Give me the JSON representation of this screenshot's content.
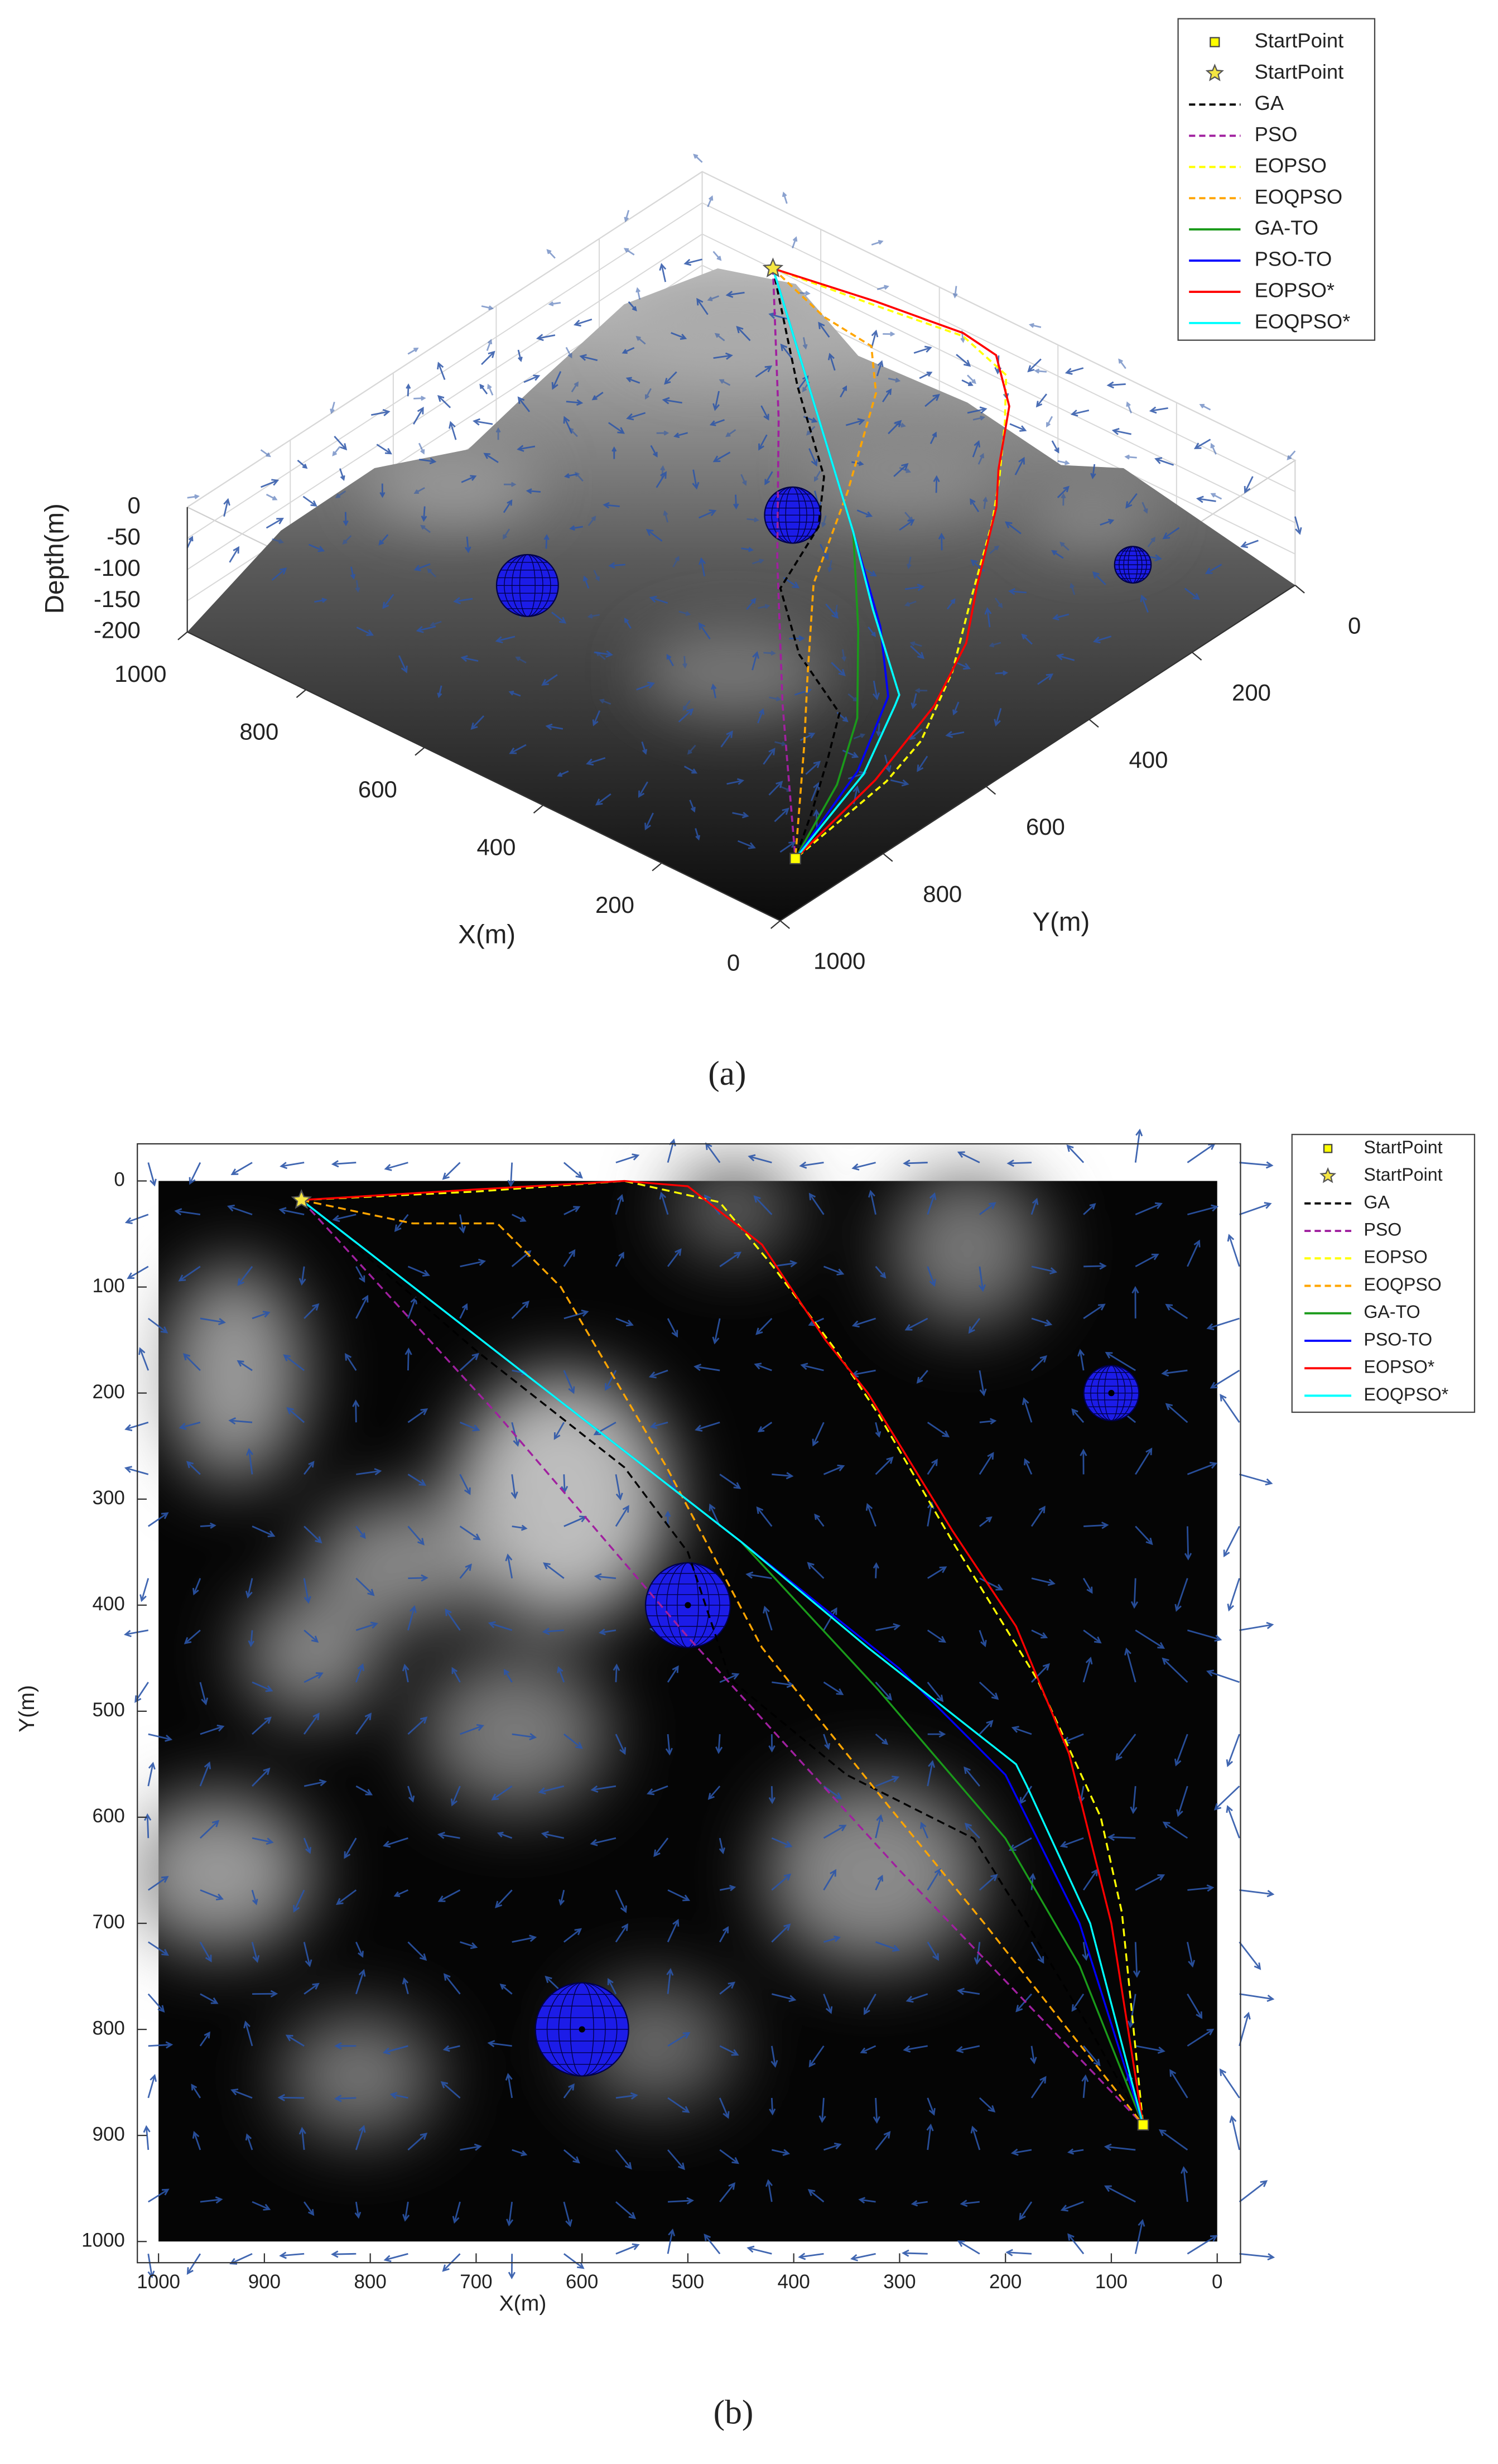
{
  "chart_data": [
    {
      "type": "line3d",
      "caption": "(a)",
      "xlabel": "X(m)",
      "ylabel": "Y(m)",
      "zlabel": "Depth(m)",
      "xlim": [
        0,
        1000
      ],
      "ylim": [
        0,
        1000
      ],
      "zlim": [
        -200,
        0
      ],
      "xticks": [
        0,
        200,
        400,
        600,
        800,
        1000
      ],
      "yticks": [
        0,
        200,
        400,
        600,
        800,
        1000
      ],
      "zticks": [
        0,
        -50,
        -100,
        -150,
        -200
      ],
      "legend": "upper right",
      "markers": [
        {
          "name": "StartPoint",
          "marker": "square",
          "color": "#ffff00",
          "x": 70,
          "y": 890,
          "z": -192
        },
        {
          "name": "StartPoint",
          "marker": "star",
          "color": "#f5e642",
          "x": 865,
          "y": 18,
          "z": -83
        }
      ],
      "series": [
        {
          "name": "GA",
          "color": "#000000",
          "linestyle": "dashed",
          "x": [
            865,
            700,
            560,
            500,
            460,
            350,
            230,
            180,
            120,
            70
          ],
          "y": [
            18,
            160,
            270,
            350,
            470,
            560,
            620,
            700,
            800,
            890
          ],
          "z": [
            -83,
            -120,
            -140,
            -150,
            -165,
            -172,
            -178,
            -184,
            -188,
            -192
          ]
        },
        {
          "name": "PSO",
          "color": "#a0209f",
          "linestyle": "dashed",
          "x": [
            865,
            680,
            500,
            300,
            70
          ],
          "y": [
            18,
            220,
            430,
            650,
            890
          ],
          "z": [
            -83,
            -130,
            -160,
            -180,
            -192
          ]
        },
        {
          "name": "EOPSO",
          "color": "#ffff00",
          "linestyle": "dashed",
          "x": [
            865,
            700,
            560,
            470,
            420,
            360,
            320,
            250,
            170,
            110,
            90,
            70
          ],
          "y": [
            18,
            10,
            0,
            20,
            80,
            160,
            220,
            340,
            470,
            600,
            690,
            890
          ],
          "z": [
            -83,
            -70,
            -60,
            -70,
            -90,
            -110,
            -130,
            -150,
            -165,
            -178,
            -185,
            -192
          ]
        },
        {
          "name": "EOQPSO",
          "color": "#ffa500",
          "linestyle": "dashed",
          "x": [
            865,
            760,
            680,
            620,
            520,
            430,
            310,
            220,
            70
          ],
          "y": [
            18,
            40,
            40,
            100,
            270,
            440,
            590,
            700,
            890
          ],
          "z": [
            -83,
            -100,
            -110,
            -125,
            -145,
            -160,
            -172,
            -182,
            -192
          ]
        },
        {
          "name": "GA-TO",
          "color": "#1a9a1a",
          "linestyle": "solid",
          "x": [
            865,
            450,
            320,
            200,
            130,
            70
          ],
          "y": [
            18,
            340,
            480,
            620,
            740,
            890
          ],
          "z": [
            -83,
            -140,
            -160,
            -172,
            -182,
            -192
          ]
        },
        {
          "name": "PSO-TO",
          "color": "#0000ff",
          "linestyle": "solid",
          "x": [
            865,
            450,
            300,
            200,
            130,
            70
          ],
          "y": [
            18,
            340,
            460,
            560,
            700,
            890
          ],
          "z": [
            -83,
            -140,
            -158,
            -170,
            -182,
            -192
          ]
        },
        {
          "name": "EOPSO*",
          "color": "#ff0000",
          "linestyle": "solid",
          "x": [
            865,
            700,
            560,
            500,
            430,
            370,
            330,
            250,
            190,
            140,
            100,
            70
          ],
          "y": [
            18,
            8,
            0,
            5,
            60,
            150,
            200,
            330,
            420,
            540,
            700,
            890
          ],
          "z": [
            -83,
            -65,
            -55,
            -60,
            -80,
            -105,
            -120,
            -140,
            -155,
            -168,
            -182,
            -192
          ]
        },
        {
          "name": "EOQPSO*",
          "color": "#00ffff",
          "linestyle": "solid",
          "x": [
            865,
            450,
            330,
            190,
            180,
            120,
            70
          ],
          "y": [
            18,
            340,
            440,
            550,
            570,
            700,
            890
          ],
          "z": [
            -83,
            -140,
            -155,
            -168,
            -170,
            -182,
            -192
          ]
        }
      ],
      "obstacles": [
        {
          "x": 600,
          "y": 800,
          "z": -48,
          "r": 44
        },
        {
          "x": 500,
          "y": 400,
          "z": -104,
          "r": 40
        },
        {
          "x": 100,
          "y": 200,
          "z": -106,
          "r": 26
        }
      ]
    },
    {
      "type": "line",
      "caption": "(b)",
      "xlabel": "X(m)",
      "ylabel": "Y(m)",
      "xlim": [
        1020,
        -22
      ],
      "ylim": [
        -35,
        1020
      ],
      "xticks": [
        1000,
        900,
        800,
        700,
        600,
        500,
        400,
        300,
        200,
        100,
        0
      ],
      "yticks": [
        0,
        100,
        200,
        300,
        400,
        500,
        600,
        700,
        800,
        900,
        1000
      ],
      "legend": "outside upper right",
      "markers": [
        {
          "name": "StartPoint",
          "marker": "square",
          "color": "#ffff00",
          "x": 70,
          "y": 890
        },
        {
          "name": "StartPoint",
          "marker": "star",
          "color": "#f5e642",
          "x": 865,
          "y": 18
        }
      ],
      "series": [
        {
          "name": "GA",
          "color": "#000000",
          "linestyle": "dashed",
          "x": [
            865,
            700,
            560,
            500,
            460,
            350,
            230,
            180,
            120,
            70
          ],
          "y": [
            18,
            160,
            270,
            350,
            470,
            560,
            620,
            700,
            800,
            890
          ]
        },
        {
          "name": "PSO",
          "color": "#a0209f",
          "linestyle": "dashed",
          "x": [
            865,
            680,
            500,
            300,
            70
          ],
          "y": [
            18,
            220,
            430,
            650,
            890
          ]
        },
        {
          "name": "EOPSO",
          "color": "#ffff00",
          "linestyle": "dashed",
          "x": [
            865,
            700,
            560,
            470,
            420,
            360,
            320,
            250,
            170,
            110,
            90,
            70
          ],
          "y": [
            18,
            10,
            0,
            20,
            80,
            160,
            220,
            340,
            470,
            600,
            690,
            890
          ]
        },
        {
          "name": "EOQPSO",
          "color": "#ffa500",
          "linestyle": "dashed",
          "x": [
            865,
            760,
            680,
            620,
            520,
            430,
            310,
            220,
            70
          ],
          "y": [
            18,
            40,
            40,
            100,
            270,
            440,
            590,
            700,
            890
          ]
        },
        {
          "name": "GA-TO",
          "color": "#1a9a1a",
          "linestyle": "solid",
          "x": [
            865,
            450,
            320,
            200,
            130,
            70
          ],
          "y": [
            18,
            340,
            480,
            620,
            740,
            890
          ]
        },
        {
          "name": "PSO-TO",
          "color": "#0000ff",
          "linestyle": "solid",
          "x": [
            865,
            450,
            300,
            200,
            130,
            70
          ],
          "y": [
            18,
            340,
            460,
            560,
            700,
            890
          ]
        },
        {
          "name": "EOPSO*",
          "color": "#ff0000",
          "linestyle": "solid",
          "x": [
            865,
            700,
            560,
            500,
            430,
            370,
            330,
            250,
            190,
            140,
            100,
            70
          ],
          "y": [
            18,
            8,
            0,
            5,
            60,
            150,
            200,
            330,
            420,
            540,
            700,
            890
          ]
        },
        {
          "name": "EOQPSO*",
          "color": "#00ffff",
          "linestyle": "solid",
          "x": [
            865,
            450,
            330,
            190,
            180,
            120,
            70
          ],
          "y": [
            18,
            340,
            440,
            550,
            570,
            700,
            890
          ]
        }
      ],
      "obstacles": [
        {
          "x": 500,
          "y": 400,
          "r": 40
        },
        {
          "x": 600,
          "y": 800,
          "r": 44
        },
        {
          "x": 100,
          "y": 200,
          "r": 26
        }
      ]
    }
  ]
}
